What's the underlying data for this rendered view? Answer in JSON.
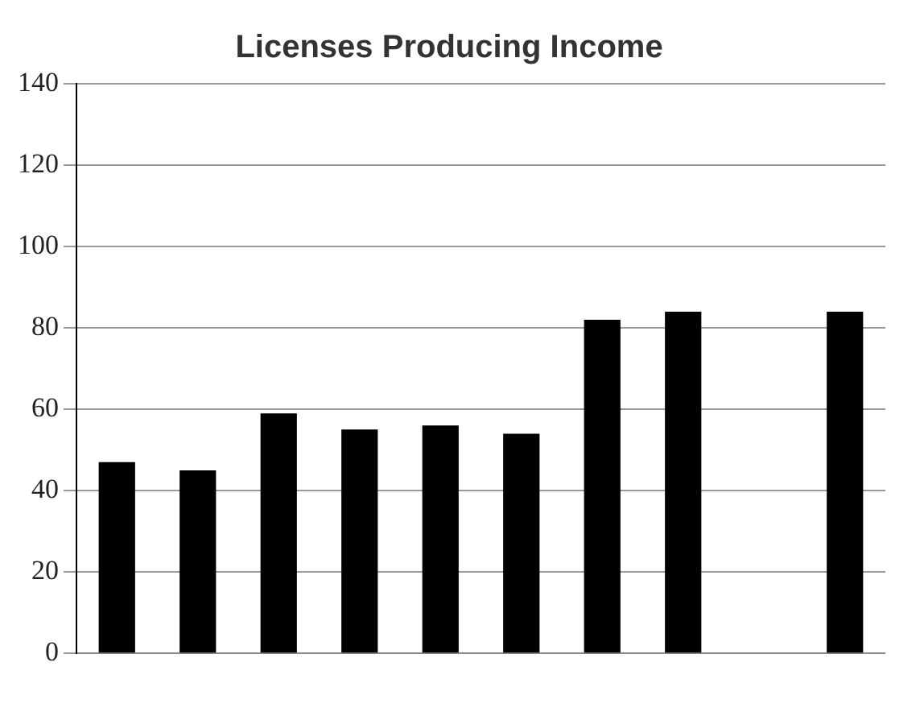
{
  "chart_data": {
    "type": "bar",
    "title": "Licenses Producing Income",
    "categories": [
      null,
      null,
      null,
      null,
      null,
      null,
      null,
      null,
      null,
      null
    ],
    "values": [
      47,
      45,
      59,
      55,
      56,
      54,
      82,
      84,
      null,
      84
    ],
    "color": "#000000",
    "ylim": [
      0,
      140
    ],
    "yticks": [
      0,
      20,
      40,
      60,
      80,
      100,
      120,
      140
    ],
    "grid": "y"
  }
}
